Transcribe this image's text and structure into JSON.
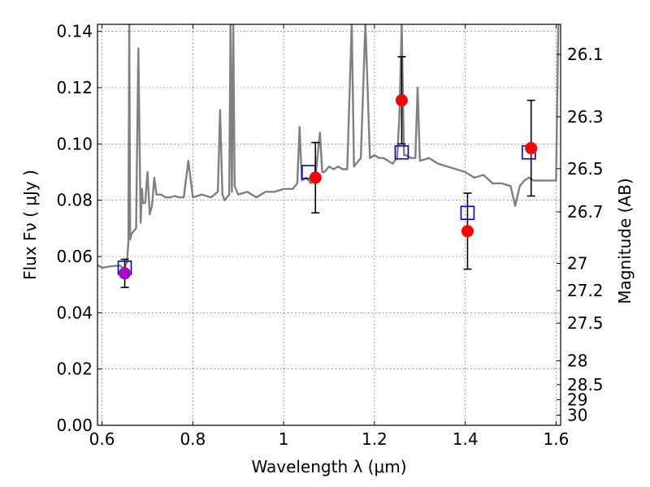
{
  "chart_data": {
    "type": "scatter",
    "title": "",
    "xlabel": "Wavelength  λ (μm)",
    "ylabel": "Flux  Fν  ( μJy )",
    "y2label": "Magnitude (AB)",
    "xlim": [
      0.59,
      1.61
    ],
    "ylim": [
      0.0,
      0.1425
    ],
    "x_ticks": [
      0.6,
      0.8,
      1.0,
      1.2,
      1.4,
      1.6
    ],
    "x_tick_labels": [
      "0.6",
      "0.8",
      "1",
      "1.2",
      "1.4",
      "1.6"
    ],
    "y_ticks": [
      0.0,
      0.02,
      0.04,
      0.06,
      0.08,
      0.1,
      0.12,
      0.14
    ],
    "y_tick_labels": [
      "0.00",
      "0.02",
      "0.04",
      "0.06",
      "0.08",
      "0.10",
      "0.12",
      "0.14"
    ],
    "y2_ticks": [
      26.1,
      26.3,
      26.5,
      26.7,
      27,
      27.2,
      27.5,
      28,
      28.5,
      29,
      30
    ],
    "y2_tick_labels": [
      "26.1",
      "26.3",
      "26.5",
      "26.7",
      "27",
      "27.2",
      "27.5",
      "28",
      "28.5",
      "29",
      "30"
    ],
    "grid": true,
    "colors": {
      "model": "#808080",
      "observed": "#ff0000",
      "observed_first": "#aa00cc",
      "model_photometry": "#0000cc",
      "errorbar": "#000000"
    },
    "model_spectrum": {
      "x": [
        0.59,
        0.6,
        0.62,
        0.64,
        0.645,
        0.65,
        0.655,
        0.658,
        0.66,
        0.662,
        0.665,
        0.67,
        0.675,
        0.68,
        0.685,
        0.688,
        0.69,
        0.695,
        0.7,
        0.705,
        0.71,
        0.715,
        0.72,
        0.73,
        0.74,
        0.75,
        0.76,
        0.77,
        0.78,
        0.79,
        0.8,
        0.82,
        0.84,
        0.855,
        0.86,
        0.865,
        0.87,
        0.88,
        0.883,
        0.886,
        0.889,
        0.892,
        0.9,
        0.92,
        0.94,
        0.96,
        0.98,
        1.0,
        1.02,
        1.03,
        1.035,
        1.04,
        1.05,
        1.06,
        1.07,
        1.08,
        1.085,
        1.09,
        1.1,
        1.11,
        1.12,
        1.13,
        1.14,
        1.15,
        1.155,
        1.16,
        1.17,
        1.18,
        1.19,
        1.2,
        1.21,
        1.22,
        1.24,
        1.25,
        1.255,
        1.26,
        1.265,
        1.27,
        1.28,
        1.29,
        1.295,
        1.3,
        1.32,
        1.34,
        1.36,
        1.38,
        1.4,
        1.42,
        1.44,
        1.46,
        1.48,
        1.5,
        1.51,
        1.52,
        1.53,
        1.54,
        1.55,
        1.56,
        1.58,
        1.6,
        1.605
      ],
      "y": [
        0.057,
        0.056,
        0.0565,
        0.0568,
        0.056,
        0.0562,
        0.058,
        0.065,
        0.143,
        0.066,
        0.068,
        0.069,
        0.07,
        0.134,
        0.072,
        0.084,
        0.079,
        0.079,
        0.09,
        0.075,
        0.078,
        0.088,
        0.082,
        0.082,
        0.081,
        0.081,
        0.0815,
        0.081,
        0.081,
        0.094,
        0.081,
        0.082,
        0.081,
        0.083,
        0.112,
        0.082,
        0.08,
        0.082,
        0.143,
        0.083,
        0.143,
        0.085,
        0.082,
        0.083,
        0.081,
        0.083,
        0.083,
        0.084,
        0.084,
        0.086,
        0.106,
        0.087,
        0.088,
        0.086,
        0.088,
        0.104,
        0.09,
        0.09,
        0.092,
        0.091,
        0.092,
        0.091,
        0.091,
        0.143,
        0.092,
        0.093,
        0.095,
        0.143,
        0.095,
        0.096,
        0.095,
        0.095,
        0.093,
        0.095,
        0.11,
        0.143,
        0.096,
        0.096,
        0.095,
        0.095,
        0.12,
        0.094,
        0.095,
        0.093,
        0.092,
        0.091,
        0.09,
        0.088,
        0.089,
        0.086,
        0.086,
        0.085,
        0.078,
        0.085,
        0.087,
        0.088,
        0.087,
        0.087,
        0.087,
        0.087,
        0.143
      ]
    },
    "observed": [
      {
        "x": 0.65,
        "y": 0.054,
        "err": 0.005
      },
      {
        "x": 1.07,
        "y": 0.088,
        "err": 0.0125
      },
      {
        "x": 1.26,
        "y": 0.1155,
        "err": 0.0155
      },
      {
        "x": 1.405,
        "y": 0.069,
        "err": 0.0135
      },
      {
        "x": 1.545,
        "y": 0.0985,
        "err": 0.017
      }
    ],
    "model_photometry": [
      {
        "x": 0.65,
        "y": 0.056
      },
      {
        "x": 1.055,
        "y": 0.09
      },
      {
        "x": 1.26,
        "y": 0.097
      },
      {
        "x": 1.405,
        "y": 0.0755
      },
      {
        "x": 1.54,
        "y": 0.097
      }
    ]
  }
}
